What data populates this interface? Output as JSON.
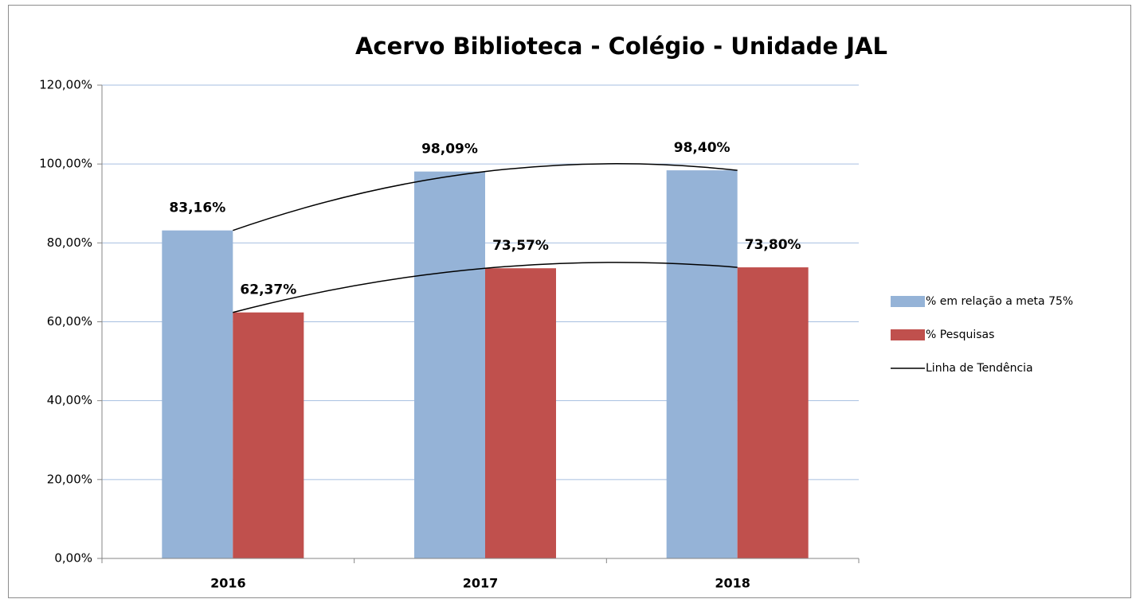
{
  "chart_data": {
    "type": "bar",
    "title": "Acervo Biblioteca - Colégio - Unidade JAL",
    "categories": [
      "2016",
      "2017",
      "2018"
    ],
    "series": [
      {
        "name": "% em relação a meta 75%",
        "color": "#95b3d7",
        "values": [
          83.16,
          98.09,
          98.4
        ],
        "value_labels": [
          "83,16%",
          "98,09%",
          "98,40%"
        ]
      },
      {
        "name": "% Pesquisas",
        "color": "#c0504d",
        "values": [
          62.37,
          73.57,
          73.8
        ],
        "value_labels": [
          "62,37%",
          "73,57%",
          "73,80%"
        ]
      }
    ],
    "trendline": {
      "name": "Linha de Tendência",
      "color": "#000000"
    },
    "ylim": [
      0,
      120
    ],
    "yticks": [
      {
        "value": 0,
        "label": "0,00%"
      },
      {
        "value": 20,
        "label": "20,00%"
      },
      {
        "value": 40,
        "label": "40,00%"
      },
      {
        "value": 60,
        "label": "60,00%"
      },
      {
        "value": 80,
        "label": "80,00%"
      },
      {
        "value": 100,
        "label": "100,00%"
      },
      {
        "value": 120,
        "label": "120,00%"
      }
    ],
    "grid": true,
    "grid_color": "#a6bfe0",
    "legend": "right"
  }
}
